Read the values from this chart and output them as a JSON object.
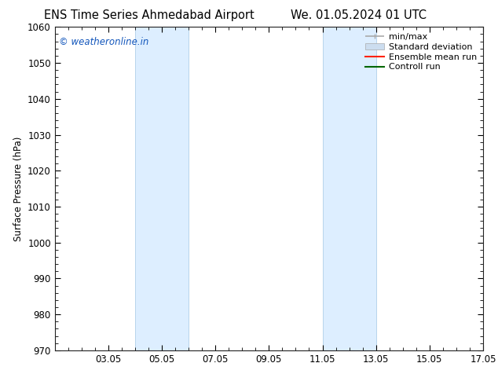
{
  "title_left": "ENS Time Series Ahmedabad Airport",
  "title_right": "We. 01.05.2024 01 UTC",
  "ylabel": "Surface Pressure (hPa)",
  "xlim": [
    1.05,
    17.05
  ],
  "ylim": [
    970,
    1060
  ],
  "yticks": [
    970,
    980,
    990,
    1000,
    1010,
    1020,
    1030,
    1040,
    1050,
    1060
  ],
  "xtick_labels": [
    "03.05",
    "05.05",
    "07.05",
    "09.05",
    "11.05",
    "13.05",
    "15.05",
    "17.05"
  ],
  "xtick_positions": [
    3.05,
    5.05,
    7.05,
    9.05,
    11.05,
    13.05,
    15.05,
    17.05
  ],
  "shaded_bands": [
    {
      "x_start": 4.05,
      "x_end": 6.05
    },
    {
      "x_start": 11.05,
      "x_end": 13.05
    }
  ],
  "band_color": "#ddeeff",
  "band_edge_color": "#b8d4ec",
  "background_color": "#ffffff",
  "watermark_text": "© weatheronline.in",
  "watermark_color": "#1155bb",
  "legend_entries": [
    {
      "label": "min/max",
      "color": "#aaaaaa",
      "lw": 1.2,
      "style": "minmax"
    },
    {
      "label": "Standard deviation",
      "color": "#ccddef",
      "lw": 6,
      "style": "band"
    },
    {
      "label": "Ensemble mean run",
      "color": "#ff2200",
      "lw": 1.5,
      "style": "line"
    },
    {
      "label": "Controll run",
      "color": "#006600",
      "lw": 1.5,
      "style": "line"
    }
  ],
  "tick_direction": "in",
  "font_size": 8.5,
  "title_font_size": 10.5
}
